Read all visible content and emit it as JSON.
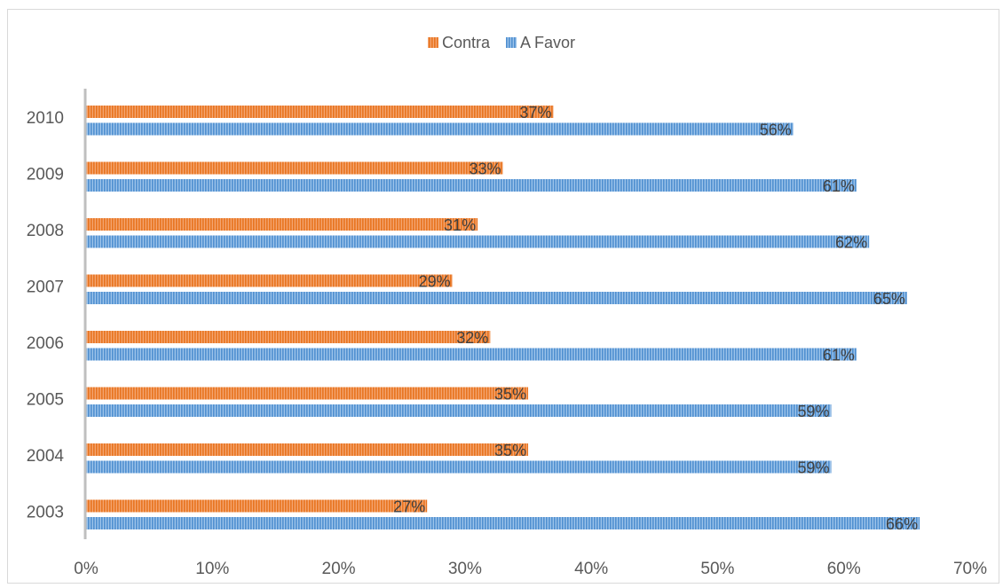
{
  "chart_data": {
    "type": "bar",
    "orientation": "horizontal",
    "categories": [
      "2003",
      "2004",
      "2005",
      "2006",
      "2007",
      "2008",
      "2009",
      "2010"
    ],
    "series": [
      {
        "name": "Contra",
        "color": "#ed7d31",
        "values": [
          27,
          35,
          35,
          32,
          29,
          31,
          33,
          37
        ],
        "labels": [
          "27%",
          "35%",
          "35%",
          "32%",
          "29%",
          "31%",
          "33%",
          "37%"
        ]
      },
      {
        "name": "A Favor",
        "color": "#5b9bd5",
        "values": [
          66,
          59,
          59,
          61,
          65,
          62,
          61,
          56
        ],
        "labels": [
          "66%",
          "59%",
          "59%",
          "61%",
          "65%",
          "62%",
          "61%",
          "56%"
        ]
      }
    ],
    "xlim": [
      0,
      70
    ],
    "xticks": [
      0,
      10,
      20,
      30,
      40,
      50,
      60,
      70
    ],
    "xtick_labels": [
      "0%",
      "10%",
      "20%",
      "30%",
      "40%",
      "50%",
      "60%",
      "70%"
    ],
    "legend_position": "top",
    "grid": false,
    "title": "",
    "xlabel": "",
    "ylabel": ""
  }
}
